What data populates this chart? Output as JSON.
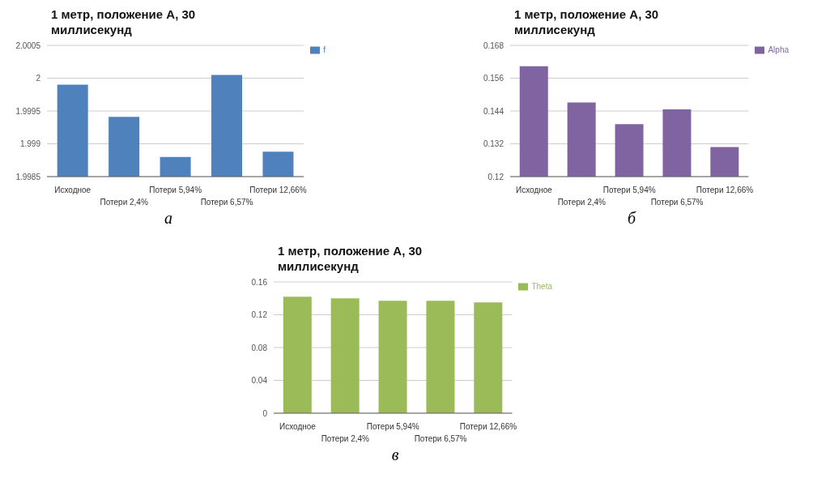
{
  "chart_data": [
    {
      "type": "bar",
      "title": "1 метр, положение А, 30 миллисекунд",
      "categories": [
        "Исходное",
        "Потери 2,4%",
        "Потери 5,94%",
        "Потери 6,57%",
        "Потери 12,66%"
      ],
      "series": [
        {
          "name": "f",
          "color": "#4f81bd",
          "values": [
            1.9999,
            1.99941,
            1.9988,
            2.00005,
            1.99888
          ]
        }
      ],
      "ylim": [
        1.9985,
        2.0005
      ],
      "yticks": [
        1.9985,
        1.999,
        1.9995,
        2,
        2.0005
      ],
      "grid": "y",
      "legend": "top right",
      "annotations": [
        "а"
      ]
    },
    {
      "type": "bar",
      "title": "1 метр, положение А, 30 миллисекунд",
      "categories": [
        "Исходное",
        "Потери 2,4%",
        "Потери 5,94%",
        "Потери 6,57%",
        "Потери 12,66%"
      ],
      "series": [
        {
          "name": "Alpha",
          "color": "#8064a2",
          "values": [
            0.1604,
            0.1471,
            0.1392,
            0.1446,
            0.1308
          ]
        }
      ],
      "ylim": [
        0.12,
        0.168
      ],
      "yticks": [
        0.12,
        0.132,
        0.144,
        0.156,
        0.168
      ],
      "grid": "y",
      "legend": "top right",
      "annotations": [
        "б"
      ]
    },
    {
      "type": "bar",
      "title": "1 метр, положение А, 30 миллисекунд",
      "categories": [
        "Исходное",
        "Потери 2,4%",
        "Потери 5,94%",
        "Потери 6,57%",
        "Потери 12,66%"
      ],
      "series": [
        {
          "name": "Theta",
          "color": "#9bbb59",
          "values": [
            0.142,
            0.14,
            0.137,
            0.137,
            0.135
          ]
        }
      ],
      "ylim": [
        0,
        0.16
      ],
      "yticks": [
        0,
        0.04,
        0.08,
        0.12,
        0.16
      ],
      "grid": "y",
      "legend": "top right",
      "annotations": [
        "в"
      ]
    }
  ]
}
